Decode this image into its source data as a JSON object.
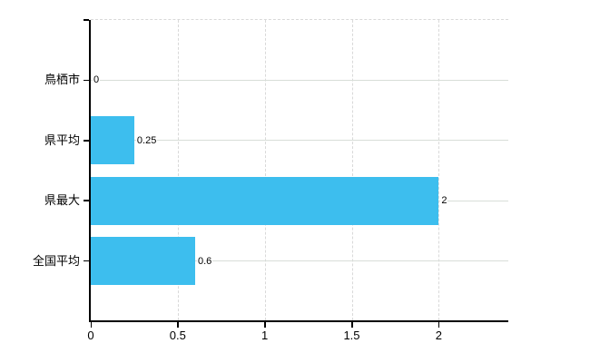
{
  "chart_data": {
    "type": "bar",
    "orientation": "horizontal",
    "title": "",
    "xlabel": "",
    "ylabel": "",
    "categories": [
      "鳥栖市",
      "県平均",
      "県最大",
      "全国平均"
    ],
    "values": [
      0,
      0.25,
      2,
      0.6
    ],
    "value_labels": [
      "0",
      "0.25",
      "2",
      "0.6"
    ],
    "xlim": [
      0,
      2.4
    ],
    "xticks": [
      0,
      0.5,
      1,
      1.5,
      2
    ],
    "xtick_labels": [
      "0",
      "0.5",
      "1",
      "1.5",
      "2"
    ],
    "grid": "on",
    "legend": "none",
    "colors": {
      "bar": "#3dbeee",
      "axis": "#000000",
      "h_gridline": "#d8ded8",
      "v_gridline": "#d9d9d9",
      "text": "#000000",
      "background": "#ffffff"
    }
  }
}
